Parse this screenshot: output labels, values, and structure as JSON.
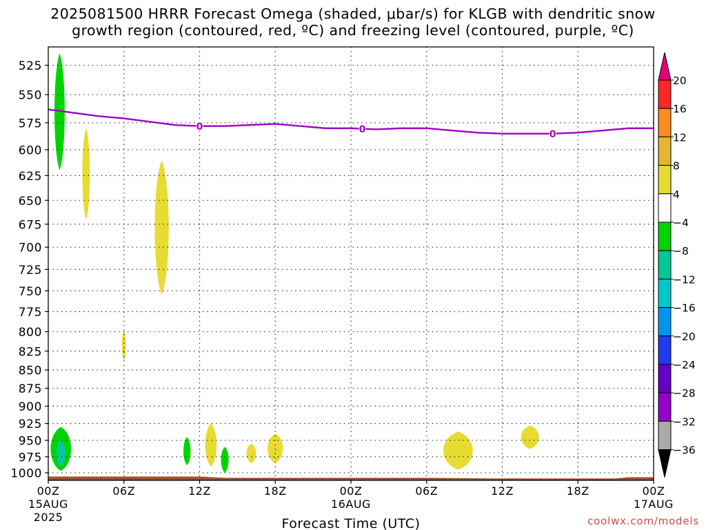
{
  "title_line1": "2025081500 HRRR Forecast Omega (shaded, μbar/s) for KLGB with dendritic snow",
  "title_line2": "growth region (contoured, red, ºC) and freezing level (contoured, purple, ºC)",
  "credit": "coolwx.com/models",
  "chart_data": {
    "type": "heatmap",
    "xlabel": "Forecast Time (UTC)",
    "ylabel": "",
    "y_scale": "log-pressure (inverted)",
    "ylim": [
      510,
      1012
    ],
    "xlim_hours": [
      0,
      48
    ],
    "y_ticks": [
      525,
      550,
      575,
      600,
      625,
      650,
      675,
      700,
      725,
      750,
      775,
      800,
      825,
      850,
      875,
      900,
      925,
      950,
      975,
      1000
    ],
    "x_ticks": [
      {
        "hour": 0,
        "label": "00Z",
        "sub": "15AUG",
        "sub2": "2025"
      },
      {
        "hour": 6,
        "label": "06Z"
      },
      {
        "hour": 12,
        "label": "12Z"
      },
      {
        "hour": 18,
        "label": "18Z"
      },
      {
        "hour": 24,
        "label": "00Z",
        "sub": "16AUG"
      },
      {
        "hour": 30,
        "label": "06Z"
      },
      {
        "hour": 36,
        "label": "12Z"
      },
      {
        "hour": 42,
        "label": "18Z"
      },
      {
        "hour": 48,
        "label": "00Z",
        "sub": "17AUG"
      }
    ],
    "grid": true,
    "freezing_level": {
      "color": "#a000c8",
      "label": "0",
      "label_hours": [
        12,
        24.9,
        40
      ],
      "points": [
        [
          0,
          563
        ],
        [
          2,
          566
        ],
        [
          4,
          569
        ],
        [
          6,
          571
        ],
        [
          8,
          574
        ],
        [
          10,
          577
        ],
        [
          12,
          578
        ],
        [
          14,
          578
        ],
        [
          16,
          577
        ],
        [
          18,
          576
        ],
        [
          20,
          578
        ],
        [
          22,
          580
        ],
        [
          24,
          580
        ],
        [
          26,
          581
        ],
        [
          28,
          580
        ],
        [
          30,
          580
        ],
        [
          32,
          582
        ],
        [
          34,
          584
        ],
        [
          36,
          585
        ],
        [
          38,
          585
        ],
        [
          40,
          585
        ],
        [
          42,
          584
        ],
        [
          44,
          582
        ],
        [
          46,
          580
        ],
        [
          48,
          580
        ]
      ]
    },
    "terrain": {
      "color": "#a0522d",
      "points": [
        [
          0,
          1006
        ],
        [
          12,
          1006
        ],
        [
          14,
          1008
        ],
        [
          30,
          1008
        ],
        [
          35,
          1009
        ],
        [
          45,
          1009
        ],
        [
          46,
          1007
        ],
        [
          48,
          1007
        ]
      ]
    },
    "omega_blobs": [
      {
        "hour": 0.9,
        "top": 515,
        "bottom": 620,
        "half_width_h": 0.4,
        "color": "#00d400"
      },
      {
        "hour": 3.0,
        "top": 580,
        "bottom": 670,
        "half_width_h": 0.3,
        "color": "#e6dc32"
      },
      {
        "hour": 9.0,
        "top": 610,
        "bottom": 755,
        "half_width_h": 0.55,
        "color": "#e6dc32"
      },
      {
        "hour": 6.0,
        "top": 798,
        "bottom": 838,
        "half_width_h": 0.15,
        "color": "#e6dc32"
      },
      {
        "hour": 1.0,
        "top": 930,
        "bottom": 997,
        "half_width_h": 0.8,
        "color": "#00d400"
      },
      {
        "hour": 1.0,
        "top": 950,
        "bottom": 990,
        "half_width_h": 0.35,
        "color": "#00c8a0"
      },
      {
        "hour": 11.0,
        "top": 945,
        "bottom": 988,
        "half_width_h": 0.28,
        "color": "#00d400"
      },
      {
        "hour": 12.9,
        "top": 925,
        "bottom": 990,
        "half_width_h": 0.45,
        "color": "#e6dc32"
      },
      {
        "hour": 14.0,
        "top": 960,
        "bottom": 1000,
        "half_width_h": 0.3,
        "color": "#00d400"
      },
      {
        "hour": 16.1,
        "top": 955,
        "bottom": 985,
        "half_width_h": 0.38,
        "color": "#e6dc32"
      },
      {
        "hour": 18.0,
        "top": 940,
        "bottom": 985,
        "half_width_h": 0.6,
        "color": "#e6dc32"
      },
      {
        "hour": 32.5,
        "top": 937,
        "bottom": 995,
        "half_width_h": 1.15,
        "color": "#e6dc32"
      },
      {
        "hour": 38.2,
        "top": 928,
        "bottom": 963,
        "half_width_h": 0.7,
        "color": "#e6dc32"
      }
    ],
    "colorbar": {
      "labels": [
        "20",
        "16",
        "12",
        "8",
        "4",
        "−4",
        "−8",
        "−12",
        "−16",
        "−20",
        "−24",
        "−28",
        "−32",
        "−36"
      ],
      "colors": [
        "#ff2828",
        "#ff8c1e",
        "#e6b432",
        "#e6dc32",
        "#ffffff",
        "#00d400",
        "#00c896",
        "#00c8c8",
        "#0096f0",
        "#1e3cf0",
        "#6400c8",
        "#9600c8",
        "#aaaaaa"
      ],
      "top_color": "#e6007a",
      "bottom_color": "#000000"
    }
  }
}
